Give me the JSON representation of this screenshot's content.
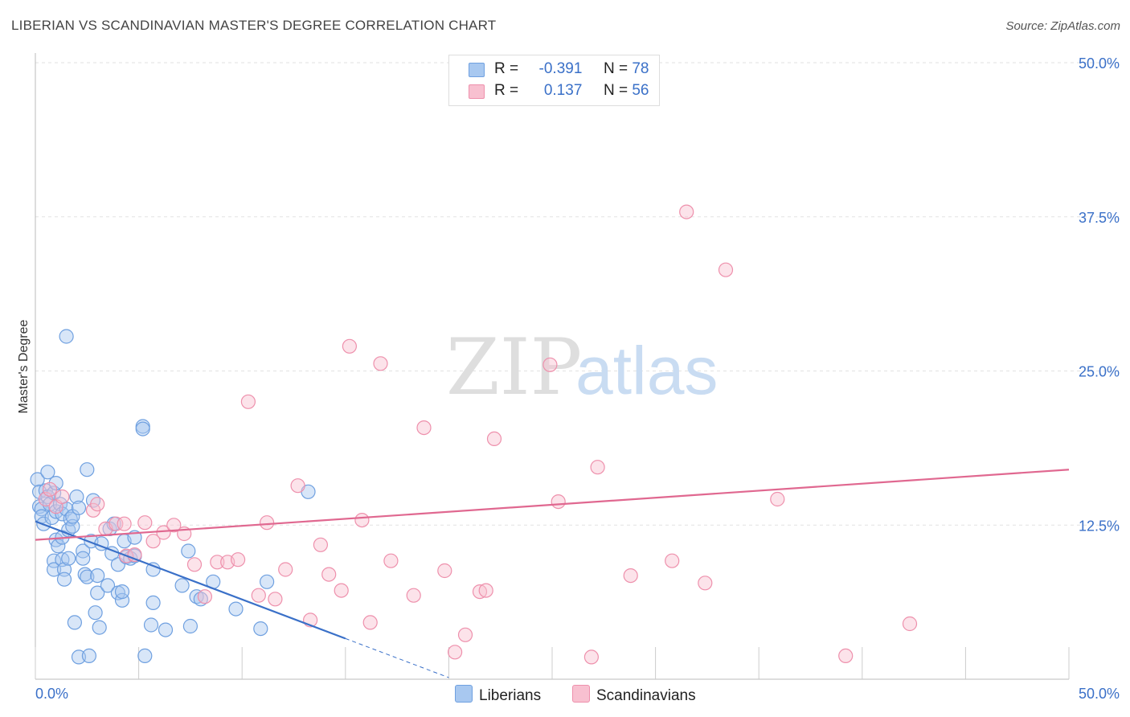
{
  "title": "LIBERIAN VS SCANDINAVIAN MASTER'S DEGREE CORRELATION CHART",
  "source": "Source: ZipAtlas.com",
  "watermark": {
    "zip": "ZIP",
    "atlas": "atlas"
  },
  "legend": {
    "r_label": "R =",
    "n_label": "N =",
    "rows": [
      {
        "r": "-0.391",
        "n": "78",
        "color": "#a8c8f0",
        "stroke": "#6fa0e0"
      },
      {
        "r": " 0.137",
        "n": "56",
        "color": "#f8c0d0",
        "stroke": "#ee90ac"
      }
    ]
  },
  "bottom_legend": [
    {
      "label": "Liberians",
      "color": "#a8c8f0",
      "stroke": "#6fa0e0"
    },
    {
      "label": "Scandinavians",
      "color": "#f8c0d0",
      "stroke": "#ee90ac"
    }
  ],
  "chart_data": {
    "type": "scatter",
    "title": "LIBERIAN VS SCANDINAVIAN MASTER'S DEGREE CORRELATION CHART",
    "xlabel": "",
    "ylabel": "Master's Degree",
    "xlim": [
      0,
      50
    ],
    "ylim": [
      0,
      50
    ],
    "x_tick_labels": [
      "0.0%",
      "50.0%"
    ],
    "y_ticks": [
      12.5,
      25.0,
      37.5,
      50.0
    ],
    "y_tick_labels": [
      "12.5%",
      "25.0%",
      "37.5%",
      "50.0%"
    ],
    "series": [
      {
        "name": "Liberians",
        "color": "#6fa0e0",
        "fill": "#a8c8f0",
        "line_color": "#3a70c8",
        "trend": {
          "x0": 0.0,
          "y0": 12.8,
          "x1": 15.0,
          "y1": 3.3,
          "dash_to_x": 20.0
        },
        "points": [
          [
            0.1,
            16.2
          ],
          [
            0.2,
            15.2
          ],
          [
            0.2,
            14.0
          ],
          [
            0.3,
            13.8
          ],
          [
            0.3,
            13.2
          ],
          [
            0.4,
            12.6
          ],
          [
            0.5,
            15.3
          ],
          [
            0.6,
            14.8
          ],
          [
            0.6,
            16.8
          ],
          [
            0.7,
            14.2
          ],
          [
            0.8,
            13.1
          ],
          [
            0.9,
            15.1
          ],
          [
            0.9,
            9.6
          ],
          [
            0.9,
            8.9
          ],
          [
            1.0,
            15.9
          ],
          [
            1.0,
            13.6
          ],
          [
            1.0,
            11.3
          ],
          [
            1.1,
            10.8
          ],
          [
            1.2,
            14.2
          ],
          [
            1.3,
            13.4
          ],
          [
            1.3,
            11.5
          ],
          [
            1.3,
            9.7
          ],
          [
            1.4,
            8.9
          ],
          [
            1.4,
            8.1
          ],
          [
            1.5,
            27.8
          ],
          [
            1.5,
            13.8
          ],
          [
            1.6,
            9.8
          ],
          [
            1.6,
            12.1
          ],
          [
            1.7,
            13.0
          ],
          [
            1.8,
            12.4
          ],
          [
            1.8,
            13.2
          ],
          [
            1.9,
            4.6
          ],
          [
            2.0,
            14.8
          ],
          [
            2.1,
            13.9
          ],
          [
            2.1,
            1.8
          ],
          [
            2.3,
            10.4
          ],
          [
            2.3,
            9.8
          ],
          [
            2.4,
            8.5
          ],
          [
            2.5,
            8.3
          ],
          [
            2.5,
            17.0
          ],
          [
            2.6,
            1.9
          ],
          [
            2.7,
            11.2
          ],
          [
            2.8,
            14.5
          ],
          [
            2.9,
            5.4
          ],
          [
            3.0,
            8.4
          ],
          [
            3.0,
            7.0
          ],
          [
            3.1,
            4.2
          ],
          [
            3.2,
            11.0
          ],
          [
            3.5,
            7.6
          ],
          [
            3.6,
            12.2
          ],
          [
            3.7,
            10.2
          ],
          [
            3.8,
            12.6
          ],
          [
            4.0,
            9.3
          ],
          [
            4.0,
            7.0
          ],
          [
            4.2,
            6.4
          ],
          [
            4.2,
            7.1
          ],
          [
            4.3,
            11.2
          ],
          [
            4.4,
            9.9
          ],
          [
            4.6,
            9.8
          ],
          [
            4.8,
            11.5
          ],
          [
            4.8,
            10.0
          ],
          [
            5.2,
            20.5
          ],
          [
            5.2,
            20.3
          ],
          [
            5.3,
            1.9
          ],
          [
            5.6,
            4.4
          ],
          [
            5.7,
            6.2
          ],
          [
            5.7,
            8.9
          ],
          [
            6.3,
            4.0
          ],
          [
            7.1,
            7.6
          ],
          [
            7.4,
            10.4
          ],
          [
            7.5,
            4.3
          ],
          [
            7.8,
            6.7
          ],
          [
            8.0,
            6.5
          ],
          [
            8.6,
            7.9
          ],
          [
            9.7,
            5.7
          ],
          [
            10.9,
            4.1
          ],
          [
            11.2,
            7.9
          ],
          [
            13.2,
            15.2
          ]
        ]
      },
      {
        "name": "Scandinavians",
        "color": "#ee90ac",
        "fill": "#f8c0d0",
        "line_color": "#e06890",
        "trend": {
          "x0": 0.0,
          "y0": 11.3,
          "x1": 50.0,
          "y1": 17.0
        },
        "points": [
          [
            0.5,
            14.6
          ],
          [
            0.7,
            15.4
          ],
          [
            1.0,
            14.0
          ],
          [
            1.3,
            14.8
          ],
          [
            2.8,
            13.7
          ],
          [
            3.0,
            14.2
          ],
          [
            3.4,
            12.2
          ],
          [
            3.9,
            12.6
          ],
          [
            4.3,
            12.6
          ],
          [
            4.4,
            10.0
          ],
          [
            4.8,
            10.1
          ],
          [
            5.3,
            12.7
          ],
          [
            5.7,
            11.2
          ],
          [
            6.2,
            11.9
          ],
          [
            6.7,
            12.5
          ],
          [
            7.2,
            11.8
          ],
          [
            7.7,
            9.3
          ],
          [
            8.2,
            6.7
          ],
          [
            8.8,
            9.5
          ],
          [
            9.3,
            9.5
          ],
          [
            9.8,
            9.7
          ],
          [
            10.3,
            22.5
          ],
          [
            10.8,
            6.8
          ],
          [
            11.2,
            12.7
          ],
          [
            11.6,
            6.5
          ],
          [
            12.1,
            8.9
          ],
          [
            12.7,
            15.7
          ],
          [
            13.3,
            4.8
          ],
          [
            13.8,
            10.9
          ],
          [
            14.2,
            8.5
          ],
          [
            14.8,
            7.2
          ],
          [
            15.2,
            27.0
          ],
          [
            15.8,
            12.9
          ],
          [
            16.2,
            4.6
          ],
          [
            16.7,
            25.6
          ],
          [
            17.2,
            9.6
          ],
          [
            18.3,
            6.8
          ],
          [
            18.8,
            20.4
          ],
          [
            19.8,
            8.8
          ],
          [
            20.3,
            2.2
          ],
          [
            20.8,
            3.6
          ],
          [
            21.5,
            7.1
          ],
          [
            21.8,
            7.2
          ],
          [
            22.2,
            19.5
          ],
          [
            24.9,
            25.5
          ],
          [
            25.3,
            14.4
          ],
          [
            26.9,
            1.8
          ],
          [
            27.2,
            17.2
          ],
          [
            28.8,
            8.4
          ],
          [
            30.8,
            9.6
          ],
          [
            31.5,
            37.9
          ],
          [
            32.4,
            7.8
          ],
          [
            33.4,
            33.2
          ],
          [
            35.9,
            14.6
          ],
          [
            39.2,
            1.9
          ],
          [
            42.3,
            4.5
          ]
        ]
      }
    ]
  }
}
